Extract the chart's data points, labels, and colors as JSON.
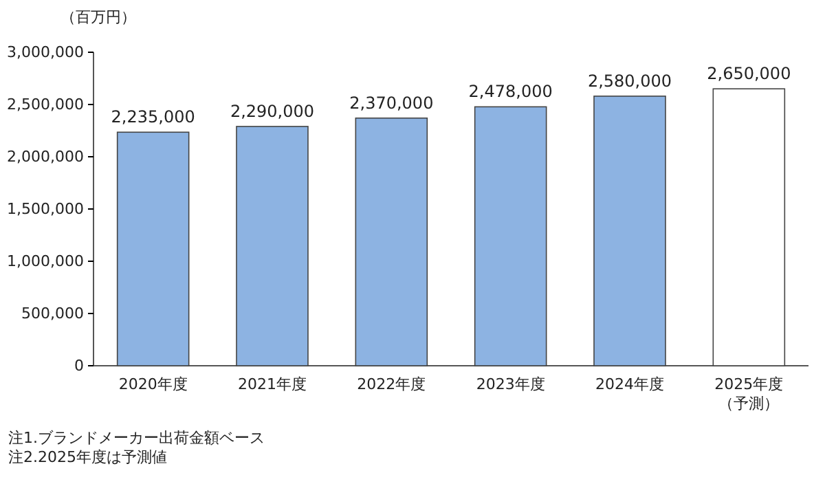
{
  "chart_data": {
    "type": "bar",
    "ylabel": "（百万円）",
    "categories": [
      "2020年度",
      "2021年度",
      "2022年度",
      "2023年度",
      "2024年度",
      "2025年度（予測）"
    ],
    "values": [
      2235000,
      2290000,
      2370000,
      2478000,
      2580000,
      2650000
    ],
    "colors": [
      "#8db3e2",
      "#8db3e2",
      "#8db3e2",
      "#8db3e2",
      "#8db3e2",
      "#ffffff"
    ],
    "ylim": [
      0,
      3000000
    ],
    "yticks": [
      {
        "value": 0,
        "label": "0"
      },
      {
        "value": 500000,
        "label": "500,000"
      },
      {
        "value": 1000000,
        "label": "1,000,000"
      },
      {
        "value": 1500000,
        "label": "1,500,000"
      },
      {
        "value": 2000000,
        "label": "2,000,000"
      },
      {
        "value": 2500000,
        "label": "2,500,000"
      },
      {
        "value": 3000000,
        "label": "3,000,000"
      }
    ],
    "value_labels": [
      "2,235,000",
      "2,290,000",
      "2,370,000",
      "2,478,000",
      "2,580,000",
      "2,650,000"
    ],
    "grid": false,
    "annotations": [
      "注1.ブランドメーカー出荷金額ベース",
      "注2.2025年度は予測値"
    ]
  }
}
